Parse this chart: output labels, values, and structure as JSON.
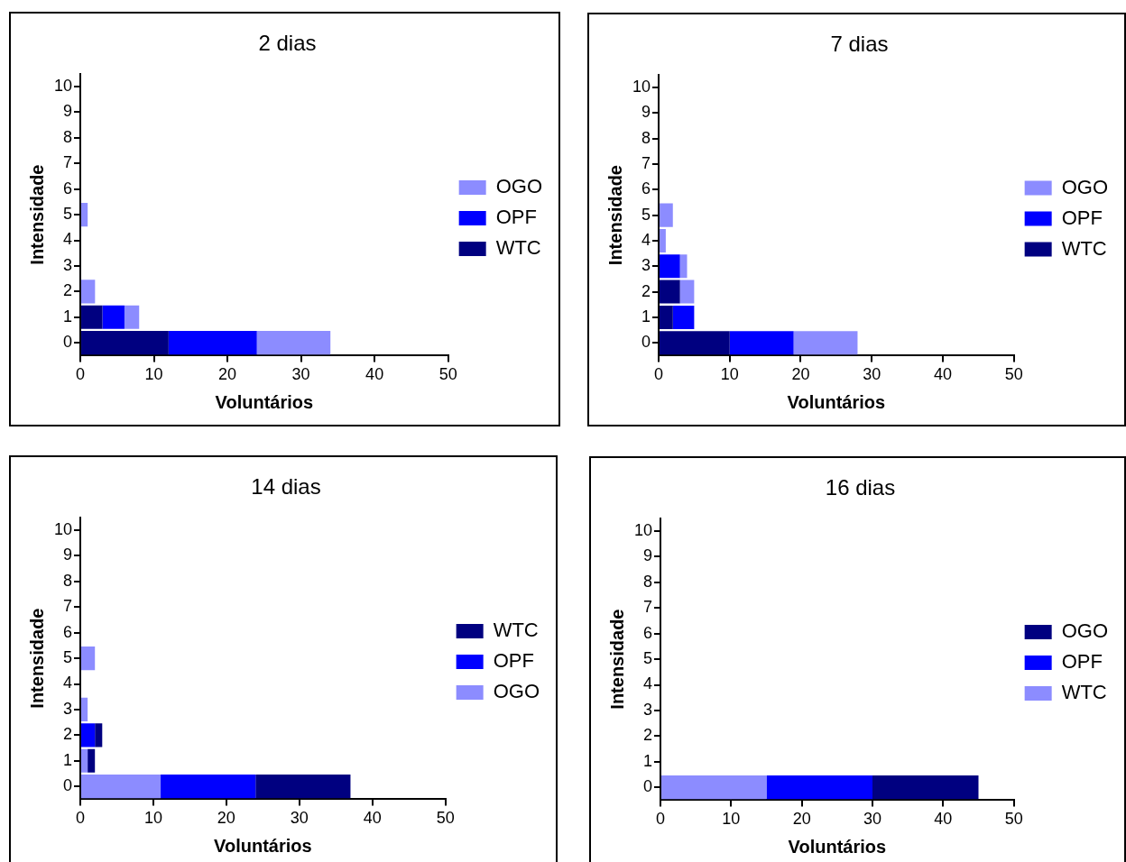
{
  "chart_data": [
    {
      "type": "bar",
      "title": "2 dias",
      "xlabel": "Voluntários",
      "ylabel": "Intensidade",
      "orientation": "horizontal",
      "stacked": true,
      "categories": [
        "10",
        "9",
        "8",
        "7",
        "6",
        "5",
        "4",
        "3",
        "2",
        "1",
        "0"
      ],
      "xlim": [
        0,
        50
      ],
      "xticks": [
        0,
        10,
        20,
        30,
        40,
        50
      ],
      "grid": false,
      "legend": "right",
      "series": [
        {
          "name": "WTC",
          "color": "#000080",
          "values": [
            0,
            0,
            0,
            0,
            0,
            0,
            0,
            0,
            0,
            3,
            12
          ]
        },
        {
          "name": "OPF",
          "color": "#0000ff",
          "values": [
            0,
            0,
            0,
            0,
            0,
            0,
            0,
            0,
            0,
            3,
            12
          ]
        },
        {
          "name": "OGO",
          "color": "#8c8cff",
          "values": [
            0,
            0,
            0,
            0,
            0,
            1,
            0,
            0,
            2,
            2,
            10
          ]
        }
      ]
    },
    {
      "type": "bar",
      "title": "7 dias",
      "xlabel": "Voluntários",
      "ylabel": "Intensidade",
      "orientation": "horizontal",
      "stacked": true,
      "categories": [
        "10",
        "9",
        "8",
        "7",
        "6",
        "5",
        "4",
        "3",
        "2",
        "1",
        "0"
      ],
      "xlim": [
        0,
        50
      ],
      "xticks": [
        0,
        10,
        20,
        30,
        40,
        50
      ],
      "grid": false,
      "legend": "right",
      "series": [
        {
          "name": "WTC",
          "color": "#000080",
          "values": [
            0,
            0,
            0,
            0,
            0,
            0,
            0,
            0,
            3,
            2,
            10
          ]
        },
        {
          "name": "OPF",
          "color": "#0000ff",
          "values": [
            0,
            0,
            0,
            0,
            0,
            0,
            0,
            3,
            0,
            3,
            9
          ]
        },
        {
          "name": "OGO",
          "color": "#8c8cff",
          "values": [
            0,
            0,
            0,
            0,
            0,
            2,
            1,
            1,
            2,
            0,
            9
          ]
        }
      ]
    },
    {
      "type": "bar",
      "title": "14 dias",
      "xlabel": "Voluntários",
      "ylabel": "Intensidade",
      "orientation": "horizontal",
      "stacked": true,
      "categories": [
        "10",
        "9",
        "8",
        "7",
        "6",
        "5",
        "4",
        "3",
        "2",
        "1",
        "0"
      ],
      "xlim": [
        0,
        50
      ],
      "xticks": [
        0,
        10,
        20,
        30,
        40,
        50
      ],
      "grid": false,
      "legend": "right",
      "series": [
        {
          "name": "OGO",
          "color": "#8c8cff",
          "values": [
            0,
            0,
            0,
            0,
            0,
            2,
            0,
            1,
            0,
            1,
            11
          ]
        },
        {
          "name": "OPF",
          "color": "#0000ff",
          "values": [
            0,
            0,
            0,
            0,
            0,
            0,
            0,
            0,
            2,
            0,
            13
          ]
        },
        {
          "name": "WTC",
          "color": "#000080",
          "values": [
            0,
            0,
            0,
            0,
            0,
            0,
            0,
            0,
            1,
            1,
            13
          ]
        }
      ]
    },
    {
      "type": "bar",
      "title": "16 dias",
      "xlabel": "Voluntários",
      "ylabel": "Intensidade",
      "orientation": "horizontal",
      "stacked": true,
      "categories": [
        "10",
        "9",
        "8",
        "7",
        "6",
        "5",
        "4",
        "3",
        "2",
        "1",
        "0"
      ],
      "xlim": [
        0,
        50
      ],
      "xticks": [
        0,
        10,
        20,
        30,
        40,
        50
      ],
      "grid": false,
      "legend": "right",
      "series": [
        {
          "name": "WTC",
          "color": "#8c8cff",
          "values": [
            0,
            0,
            0,
            0,
            0,
            0,
            0,
            0,
            0,
            0,
            15
          ]
        },
        {
          "name": "OPF",
          "color": "#0000ff",
          "values": [
            0,
            0,
            0,
            0,
            0,
            0,
            0,
            0,
            0,
            0,
            15
          ]
        },
        {
          "name": "OGO",
          "color": "#000080",
          "values": [
            0,
            0,
            0,
            0,
            0,
            0,
            0,
            0,
            0,
            0,
            15
          ]
        }
      ]
    }
  ]
}
